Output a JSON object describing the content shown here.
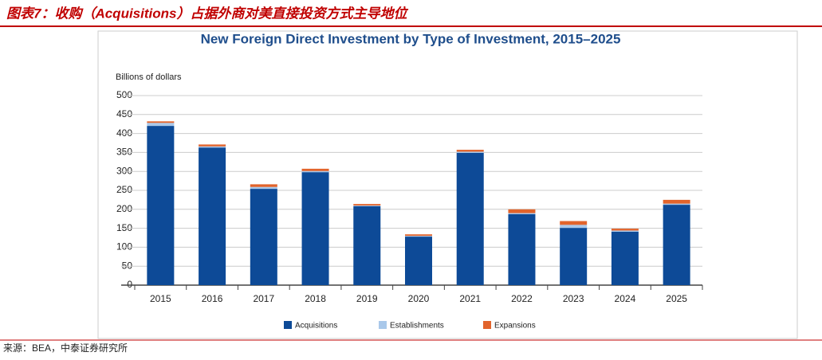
{
  "header": {
    "title": "图表7：收购（Acquisitions）占据外商对美直接投资方式主导地位"
  },
  "chart_data": {
    "type": "bar",
    "stacked": true,
    "title": "New Foreign Direct Investment by Type of Investment, 2015–2025",
    "y_label": "Billions of dollars",
    "categories": [
      "2015",
      "2016",
      "2017",
      "2018",
      "2019",
      "2020",
      "2021",
      "2022",
      "2023",
      "2024",
      "2025"
    ],
    "series": [
      {
        "name": "Acquisitions",
        "color": "#0d4a97",
        "values": [
          420,
          363,
          254,
          298,
          208,
          128,
          349,
          187,
          151,
          141,
          212
        ]
      },
      {
        "name": "Establishments",
        "color": "#a9c8ea",
        "values": [
          8,
          3,
          5,
          3,
          2,
          2,
          3,
          3,
          8,
          3,
          3
        ]
      },
      {
        "name": "Expansions",
        "color": "#e2642c",
        "values": [
          4,
          5,
          7,
          6,
          4,
          4,
          5,
          10,
          10,
          5,
          10
        ]
      }
    ],
    "ylim": [
      0,
      500
    ],
    "yticks": [
      0,
      50,
      100,
      150,
      200,
      250,
      300,
      350,
      400,
      450,
      500
    ],
    "grid": true,
    "legend": "bottom"
  },
  "source": "来源：BEA，中泰证券研究所"
}
